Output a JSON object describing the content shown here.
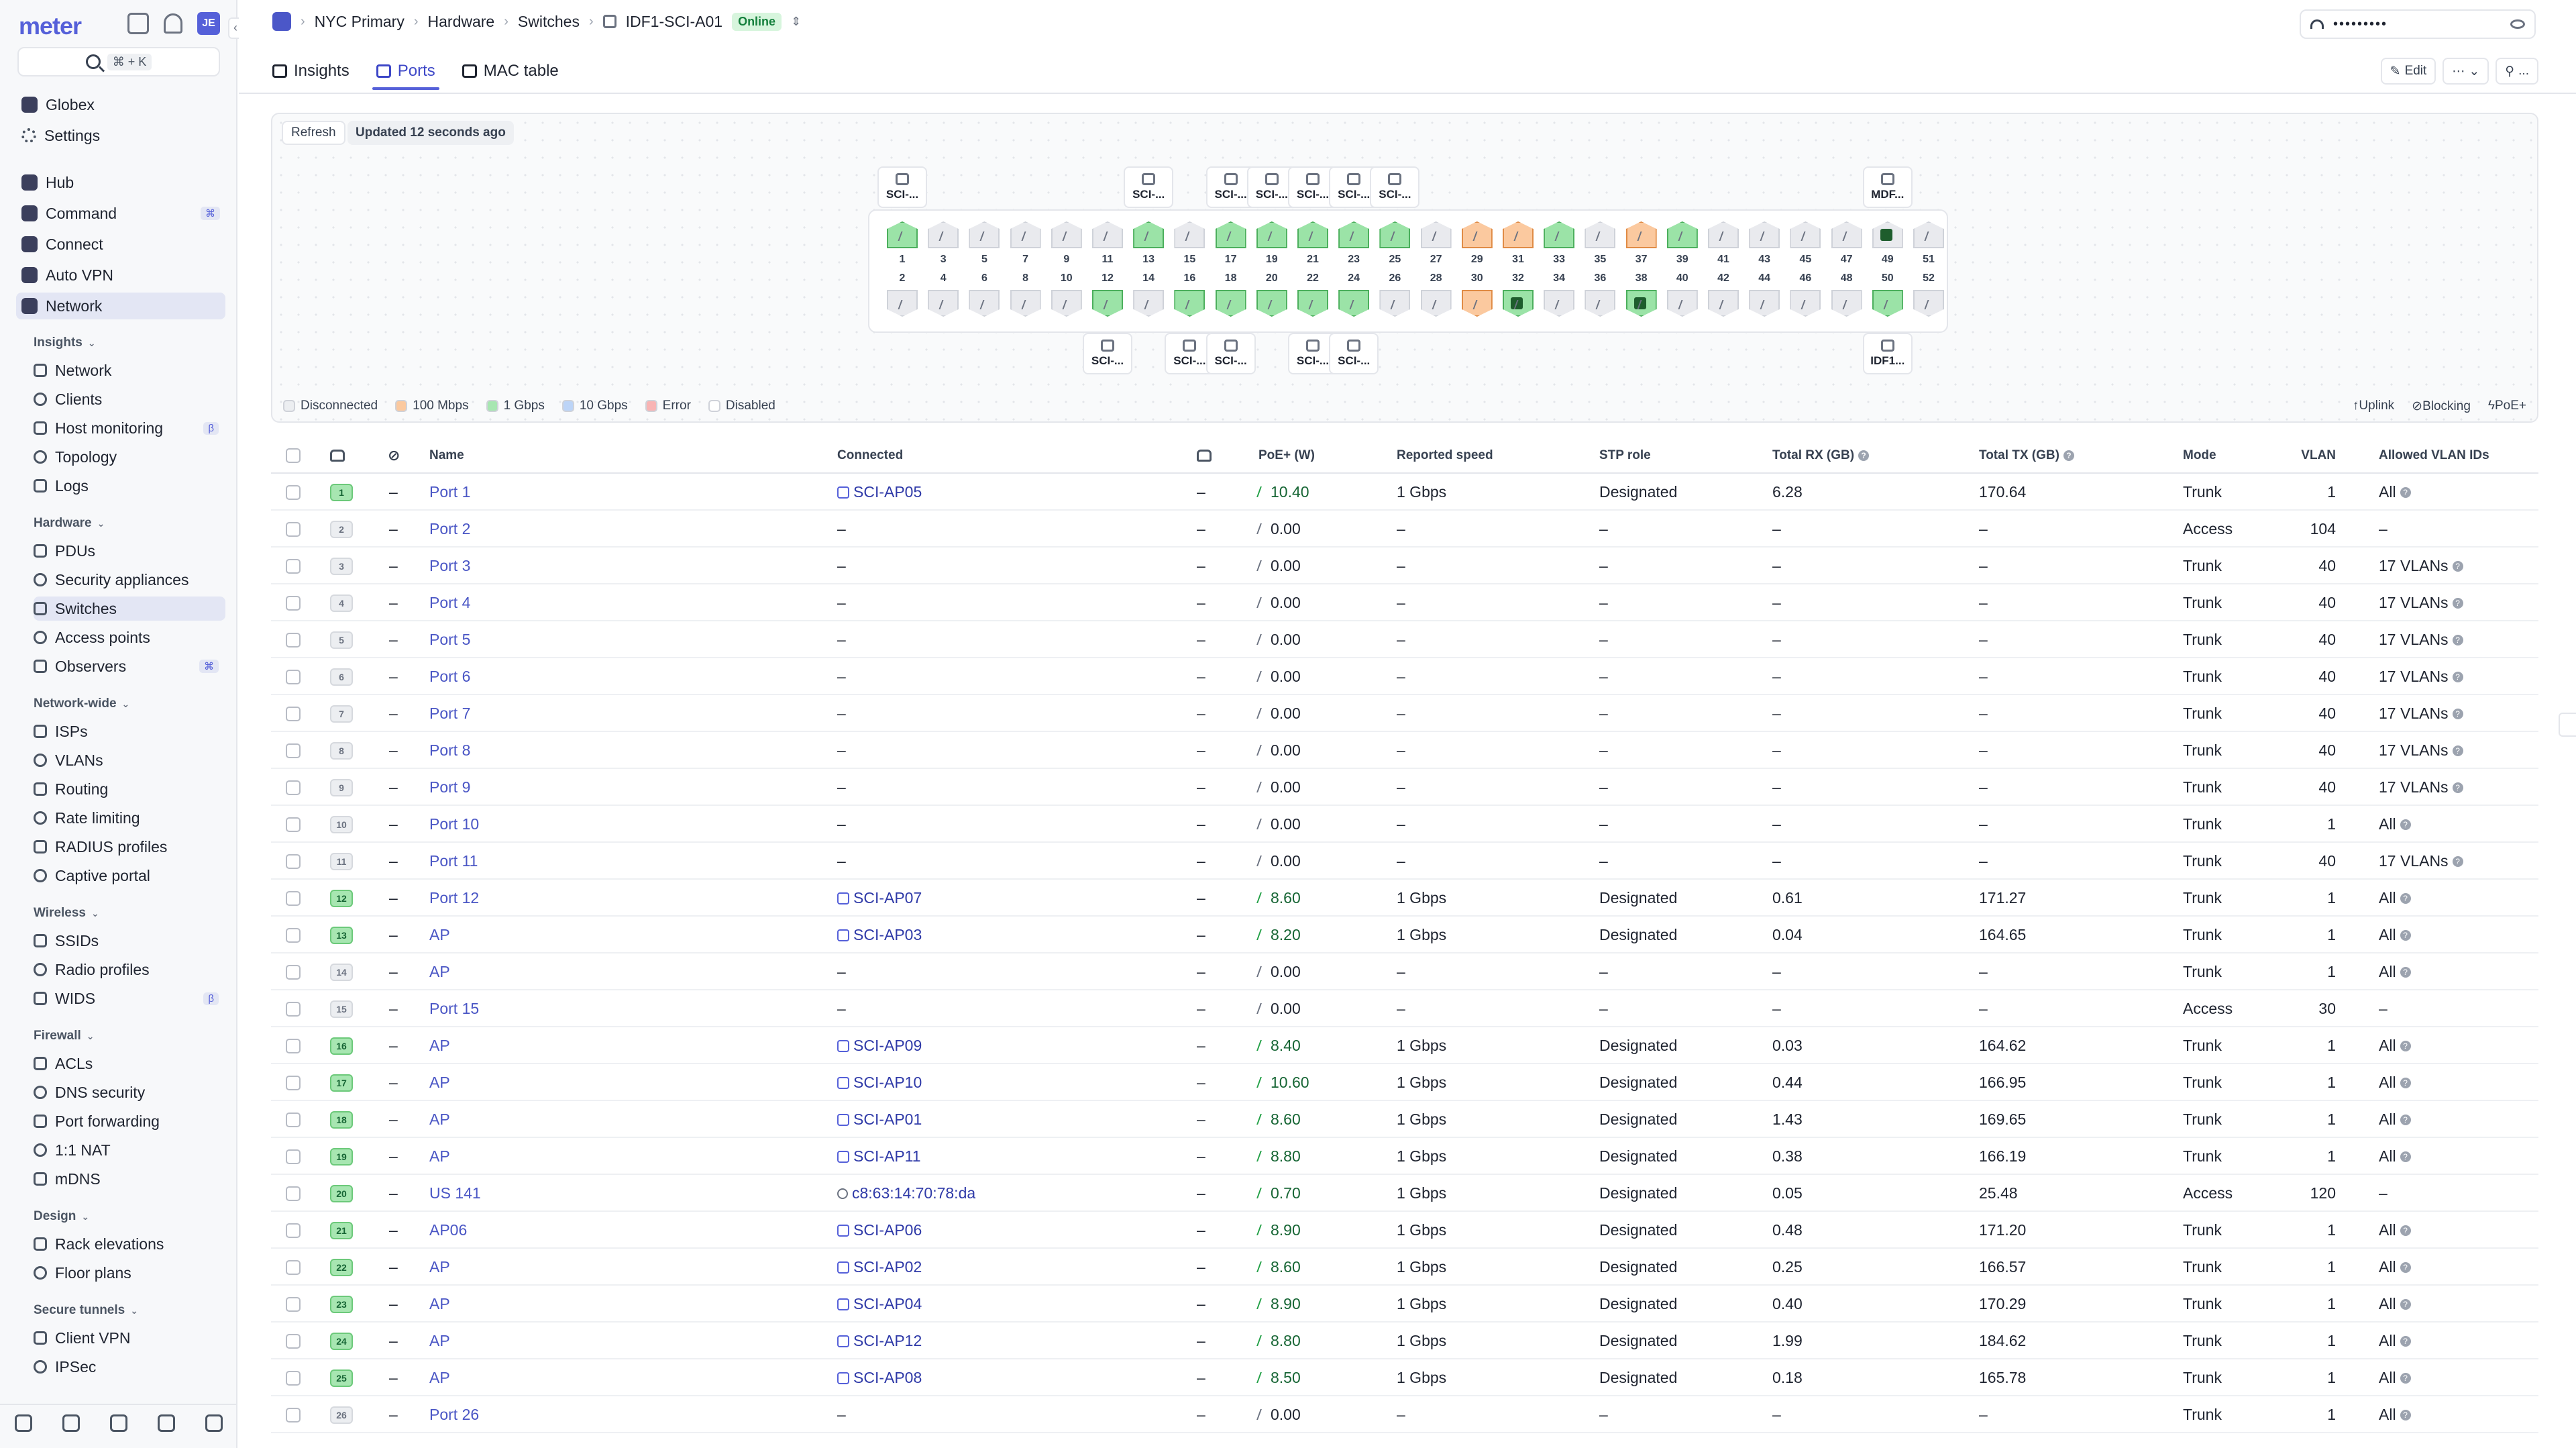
{
  "app": {
    "logo": "meter",
    "avatar": "JE",
    "search_shortcut": "⌘ + K"
  },
  "sidebar": {
    "org": {
      "label": "Globex"
    },
    "settings": {
      "label": "Settings"
    },
    "apps": [
      {
        "label": "Hub"
      },
      {
        "label": "Command",
        "badge": "⌘"
      },
      {
        "label": "Connect"
      },
      {
        "label": "Auto VPN"
      },
      {
        "label": "Network"
      }
    ],
    "sections": [
      {
        "title": "Insights",
        "items": [
          {
            "label": "Network"
          },
          {
            "label": "Clients"
          },
          {
            "label": "Host monitoring",
            "badge": "β"
          },
          {
            "label": "Topology"
          },
          {
            "label": "Logs"
          }
        ]
      },
      {
        "title": "Hardware",
        "items": [
          {
            "label": "PDUs"
          },
          {
            "label": "Security appliances"
          },
          {
            "label": "Switches"
          },
          {
            "label": "Access points"
          },
          {
            "label": "Observers",
            "badge": "⌘"
          }
        ]
      },
      {
        "title": "Network-wide",
        "items": [
          {
            "label": "ISPs"
          },
          {
            "label": "VLANs"
          },
          {
            "label": "Routing"
          },
          {
            "label": "Rate limiting"
          },
          {
            "label": "RADIUS profiles"
          },
          {
            "label": "Captive portal"
          }
        ]
      },
      {
        "title": "Wireless",
        "items": [
          {
            "label": "SSIDs"
          },
          {
            "label": "Radio profiles"
          },
          {
            "label": "WIDS",
            "badge": "β"
          }
        ]
      },
      {
        "title": "Firewall",
        "items": [
          {
            "label": "ACLs"
          },
          {
            "label": "DNS security"
          },
          {
            "label": "Port forwarding"
          },
          {
            "label": "1:1 NAT"
          },
          {
            "label": "mDNS"
          }
        ]
      },
      {
        "title": "Design",
        "items": [
          {
            "label": "Rack elevations"
          },
          {
            "label": "Floor plans"
          }
        ]
      },
      {
        "title": "Secure tunnels",
        "items": [
          {
            "label": "Client VPN"
          },
          {
            "label": "IPSec"
          }
        ]
      }
    ]
  },
  "header": {
    "breadcrumbs": [
      "NYC Primary",
      "Hardware",
      "Switches",
      "IDF1-SCI-A01"
    ],
    "status": "Online",
    "ssid_mask": "•••••••••",
    "tabs": [
      {
        "label": "Insights"
      },
      {
        "label": "Ports"
      },
      {
        "label": "MAC table"
      }
    ],
    "active_tab": "Ports",
    "edit_label": "Edit",
    "more_label": "⋯",
    "extra_label": "..."
  },
  "portmap": {
    "refresh_label": "Refresh",
    "updated_label": "Updated 12 seconds ago",
    "legend": [
      {
        "label": "Disconnected",
        "color": "#eceef1"
      },
      {
        "label": "100 Mbps",
        "color": "#fbc99f"
      },
      {
        "label": "1 Gbps",
        "color": "#a7e6b1"
      },
      {
        "label": "10 Gbps",
        "color": "#bcd4f7"
      },
      {
        "label": "Error",
        "color": "#f8b4b4"
      },
      {
        "label": "Disabled",
        "color": "#ffffff"
      }
    ],
    "legend_right": [
      {
        "label": "Uplink",
        "icon": "uplink-icon"
      },
      {
        "label": "Blocking",
        "icon": "blocking-icon"
      },
      {
        "label": "PoE+",
        "icon": "poe-icon"
      }
    ],
    "top_states": [
      "green",
      "grey",
      "grey",
      "grey",
      "grey",
      "grey",
      "green",
      "grey",
      "green",
      "green",
      "green",
      "green",
      "green",
      "grey",
      "orange",
      "orange",
      "green",
      "grey",
      "orange",
      "green",
      "grey",
      "grey",
      "grey",
      "grey",
      "uplink-green",
      "grey"
    ],
    "bottom_states": [
      "grey",
      "grey",
      "grey",
      "grey",
      "grey",
      "green",
      "grey",
      "green",
      "green",
      "green",
      "green",
      "green",
      "grey",
      "grey",
      "orange",
      "green-uplink",
      "grey",
      "grey",
      "green-uplink",
      "grey",
      "grey",
      "grey",
      "grey",
      "grey",
      "green",
      "grey"
    ],
    "top_numbers": [
      "1",
      "3",
      "5",
      "7",
      "9",
      "11",
      "13",
      "15",
      "17",
      "19",
      "21",
      "23",
      "25",
      "27",
      "29",
      "31",
      "33",
      "35",
      "37",
      "39",
      "41",
      "43",
      "45",
      "47",
      "49",
      "51"
    ],
    "bottom_numbers": [
      "2",
      "4",
      "6",
      "8",
      "10",
      "12",
      "14",
      "16",
      "18",
      "20",
      "22",
      "24",
      "26",
      "28",
      "30",
      "32",
      "34",
      "36",
      "38",
      "40",
      "42",
      "44",
      "46",
      "48",
      "50",
      "52"
    ],
    "top_devices": [
      {
        "label": "SCI-...",
        "port_index": 0
      },
      {
        "label": "SCI-...",
        "port_index": 6
      },
      {
        "label": "SCI-...",
        "port_index": 8
      },
      {
        "label": "SCI-...",
        "port_index": 9
      },
      {
        "label": "SCI-...",
        "port_index": 10
      },
      {
        "label": "SCI-...",
        "port_index": 11
      },
      {
        "label": "SCI-...",
        "port_index": 12
      },
      {
        "label": "MDF...",
        "port_index": 24
      }
    ],
    "bottom_devices": [
      {
        "label": "SCI-...",
        "port_index": 5
      },
      {
        "label": "SCI-...",
        "port_index": 7
      },
      {
        "label": "SCI-...",
        "port_index": 8
      },
      {
        "label": "SCI-...",
        "port_index": 10
      },
      {
        "label": "SCI-...",
        "port_index": 11
      },
      {
        "label": "IDF1...",
        "port_index": 24
      }
    ]
  },
  "table": {
    "columns": [
      "Name",
      "Connected",
      "PoE+ (W)",
      "Reported speed",
      "STP role",
      "Total RX (GB)",
      "Total TX (GB)",
      "Mode",
      "VLAN",
      "Allowed VLAN IDs"
    ],
    "rows": [
      {
        "num": "1",
        "on": true,
        "dash": "–",
        "name": "Port 1",
        "conn": "SCI-AP05",
        "conn_type": "ap",
        "col3": "–",
        "poe": "10.40",
        "poe_on": true,
        "speed": "1 Gbps",
        "stp": "Designated",
        "rx": "6.28",
        "tx": "170.64",
        "mode": "Trunk",
        "vlan": "1",
        "allowed": "All"
      },
      {
        "num": "2",
        "on": false,
        "dash": "–",
        "name": "Port 2",
        "conn": "–",
        "conn_type": "none",
        "col3": "–",
        "poe": "0.00",
        "poe_on": false,
        "speed": "–",
        "stp": "–",
        "rx": "–",
        "tx": "–",
        "mode": "Access",
        "vlan": "104",
        "allowed": "–"
      },
      {
        "num": "3",
        "on": false,
        "dash": "–",
        "name": "Port 3",
        "conn": "–",
        "conn_type": "none",
        "col3": "–",
        "poe": "0.00",
        "poe_on": false,
        "speed": "–",
        "stp": "–",
        "rx": "–",
        "tx": "–",
        "mode": "Trunk",
        "vlan": "40",
        "allowed": "17 VLANs"
      },
      {
        "num": "4",
        "on": false,
        "dash": "–",
        "name": "Port 4",
        "conn": "–",
        "conn_type": "none",
        "col3": "–",
        "poe": "0.00",
        "poe_on": false,
        "speed": "–",
        "stp": "–",
        "rx": "–",
        "tx": "–",
        "mode": "Trunk",
        "vlan": "40",
        "allowed": "17 VLANs"
      },
      {
        "num": "5",
        "on": false,
        "dash": "–",
        "name": "Port 5",
        "conn": "–",
        "conn_type": "none",
        "col3": "–",
        "poe": "0.00",
        "poe_on": false,
        "speed": "–",
        "stp": "–",
        "rx": "–",
        "tx": "–",
        "mode": "Trunk",
        "vlan": "40",
        "allowed": "17 VLANs"
      },
      {
        "num": "6",
        "on": false,
        "dash": "–",
        "name": "Port 6",
        "conn": "–",
        "conn_type": "none",
        "col3": "–",
        "poe": "0.00",
        "poe_on": false,
        "speed": "–",
        "stp": "–",
        "rx": "–",
        "tx": "–",
        "mode": "Trunk",
        "vlan": "40",
        "allowed": "17 VLANs"
      },
      {
        "num": "7",
        "on": false,
        "dash": "–",
        "name": "Port 7",
        "conn": "–",
        "conn_type": "none",
        "col3": "–",
        "poe": "0.00",
        "poe_on": false,
        "speed": "–",
        "stp": "–",
        "rx": "–",
        "tx": "–",
        "mode": "Trunk",
        "vlan": "40",
        "allowed": "17 VLANs"
      },
      {
        "num": "8",
        "on": false,
        "dash": "–",
        "name": "Port 8",
        "conn": "–",
        "conn_type": "none",
        "col3": "–",
        "poe": "0.00",
        "poe_on": false,
        "speed": "–",
        "stp": "–",
        "rx": "–",
        "tx": "–",
        "mode": "Trunk",
        "vlan": "40",
        "allowed": "17 VLANs"
      },
      {
        "num": "9",
        "on": false,
        "dash": "–",
        "name": "Port 9",
        "conn": "–",
        "conn_type": "none",
        "col3": "–",
        "poe": "0.00",
        "poe_on": false,
        "speed": "–",
        "stp": "–",
        "rx": "–",
        "tx": "–",
        "mode": "Trunk",
        "vlan": "40",
        "allowed": "17 VLANs"
      },
      {
        "num": "10",
        "on": false,
        "dash": "–",
        "name": "Port 10",
        "conn": "–",
        "conn_type": "none",
        "col3": "–",
        "poe": "0.00",
        "poe_on": false,
        "speed": "–",
        "stp": "–",
        "rx": "–",
        "tx": "–",
        "mode": "Trunk",
        "vlan": "1",
        "allowed": "All"
      },
      {
        "num": "11",
        "on": false,
        "dash": "–",
        "name": "Port 11",
        "conn": "–",
        "conn_type": "none",
        "col3": "–",
        "poe": "0.00",
        "poe_on": false,
        "speed": "–",
        "stp": "–",
        "rx": "–",
        "tx": "–",
        "mode": "Trunk",
        "vlan": "40",
        "allowed": "17 VLANs"
      },
      {
        "num": "12",
        "on": true,
        "dash": "–",
        "name": "Port 12",
        "conn": "SCI-AP07",
        "conn_type": "ap",
        "col3": "–",
        "poe": "8.60",
        "poe_on": true,
        "speed": "1 Gbps",
        "stp": "Designated",
        "rx": "0.61",
        "tx": "171.27",
        "mode": "Trunk",
        "vlan": "1",
        "allowed": "All"
      },
      {
        "num": "13",
        "on": true,
        "dash": "–",
        "name": "AP",
        "conn": "SCI-AP03",
        "conn_type": "ap",
        "col3": "–",
        "poe": "8.20",
        "poe_on": true,
        "speed": "1 Gbps",
        "stp": "Designated",
        "rx": "0.04",
        "tx": "164.65",
        "mode": "Trunk",
        "vlan": "1",
        "allowed": "All"
      },
      {
        "num": "14",
        "on": false,
        "dash": "–",
        "name": "AP",
        "conn": "–",
        "conn_type": "none",
        "col3": "–",
        "poe": "0.00",
        "poe_on": false,
        "speed": "–",
        "stp": "–",
        "rx": "–",
        "tx": "–",
        "mode": "Trunk",
        "vlan": "1",
        "allowed": "All"
      },
      {
        "num": "15",
        "on": false,
        "dash": "–",
        "name": "Port 15",
        "conn": "–",
        "conn_type": "none",
        "col3": "–",
        "poe": "0.00",
        "poe_on": false,
        "speed": "–",
        "stp": "–",
        "rx": "–",
        "tx": "–",
        "mode": "Access",
        "vlan": "30",
        "allowed": "–"
      },
      {
        "num": "16",
        "on": true,
        "dash": "–",
        "name": "AP",
        "conn": "SCI-AP09",
        "conn_type": "ap",
        "col3": "–",
        "poe": "8.40",
        "poe_on": true,
        "speed": "1 Gbps",
        "stp": "Designated",
        "rx": "0.03",
        "tx": "164.62",
        "mode": "Trunk",
        "vlan": "1",
        "allowed": "All"
      },
      {
        "num": "17",
        "on": true,
        "dash": "–",
        "name": "AP",
        "conn": "SCI-AP10",
        "conn_type": "ap",
        "col3": "–",
        "poe": "10.60",
        "poe_on": true,
        "speed": "1 Gbps",
        "stp": "Designated",
        "rx": "0.44",
        "tx": "166.95",
        "mode": "Trunk",
        "vlan": "1",
        "allowed": "All"
      },
      {
        "num": "18",
        "on": true,
        "dash": "–",
        "name": "AP",
        "conn": "SCI-AP01",
        "conn_type": "ap",
        "col3": "–",
        "poe": "8.60",
        "poe_on": true,
        "speed": "1 Gbps",
        "stp": "Designated",
        "rx": "1.43",
        "tx": "169.65",
        "mode": "Trunk",
        "vlan": "1",
        "allowed": "All"
      },
      {
        "num": "19",
        "on": true,
        "dash": "–",
        "name": "AP",
        "conn": "SCI-AP11",
        "conn_type": "ap",
        "col3": "–",
        "poe": "8.80",
        "poe_on": true,
        "speed": "1 Gbps",
        "stp": "Designated",
        "rx": "0.38",
        "tx": "166.19",
        "mode": "Trunk",
        "vlan": "1",
        "allowed": "All"
      },
      {
        "num": "20",
        "on": true,
        "dash": "–",
        "name": "US 141",
        "conn": "c8:63:14:70:78:da",
        "conn_type": "mac",
        "col3": "–",
        "poe": "0.70",
        "poe_on": true,
        "speed": "1 Gbps",
        "stp": "Designated",
        "rx": "0.05",
        "tx": "25.48",
        "mode": "Access",
        "vlan": "120",
        "allowed": "–"
      },
      {
        "num": "21",
        "on": true,
        "dash": "–",
        "name": "AP06",
        "conn": "SCI-AP06",
        "conn_type": "ap",
        "col3": "–",
        "poe": "8.90",
        "poe_on": true,
        "speed": "1 Gbps",
        "stp": "Designated",
        "rx": "0.48",
        "tx": "171.20",
        "mode": "Trunk",
        "vlan": "1",
        "allowed": "All"
      },
      {
        "num": "22",
        "on": true,
        "dash": "–",
        "name": "AP",
        "conn": "SCI-AP02",
        "conn_type": "ap",
        "col3": "–",
        "poe": "8.60",
        "poe_on": true,
        "speed": "1 Gbps",
        "stp": "Designated",
        "rx": "0.25",
        "tx": "166.57",
        "mode": "Trunk",
        "vlan": "1",
        "allowed": "All"
      },
      {
        "num": "23",
        "on": true,
        "dash": "–",
        "name": "AP",
        "conn": "SCI-AP04",
        "conn_type": "ap",
        "col3": "–",
        "poe": "8.90",
        "poe_on": true,
        "speed": "1 Gbps",
        "stp": "Designated",
        "rx": "0.40",
        "tx": "170.29",
        "mode": "Trunk",
        "vlan": "1",
        "allowed": "All"
      },
      {
        "num": "24",
        "on": true,
        "dash": "–",
        "name": "AP",
        "conn": "SCI-AP12",
        "conn_type": "ap",
        "col3": "–",
        "poe": "8.80",
        "poe_on": true,
        "speed": "1 Gbps",
        "stp": "Designated",
        "rx": "1.99",
        "tx": "184.62",
        "mode": "Trunk",
        "vlan": "1",
        "allowed": "All"
      },
      {
        "num": "25",
        "on": true,
        "dash": "–",
        "name": "AP",
        "conn": "SCI-AP08",
        "conn_type": "ap",
        "col3": "–",
        "poe": "8.50",
        "poe_on": true,
        "speed": "1 Gbps",
        "stp": "Designated",
        "rx": "0.18",
        "tx": "165.78",
        "mode": "Trunk",
        "vlan": "1",
        "allowed": "All"
      },
      {
        "num": "26",
        "on": false,
        "dash": "–",
        "name": "Port 26",
        "conn": "–",
        "conn_type": "none",
        "col3": "–",
        "poe": "0.00",
        "poe_on": false,
        "speed": "–",
        "stp": "–",
        "rx": "–",
        "tx": "–",
        "mode": "Trunk",
        "vlan": "1",
        "allowed": "All"
      }
    ]
  }
}
